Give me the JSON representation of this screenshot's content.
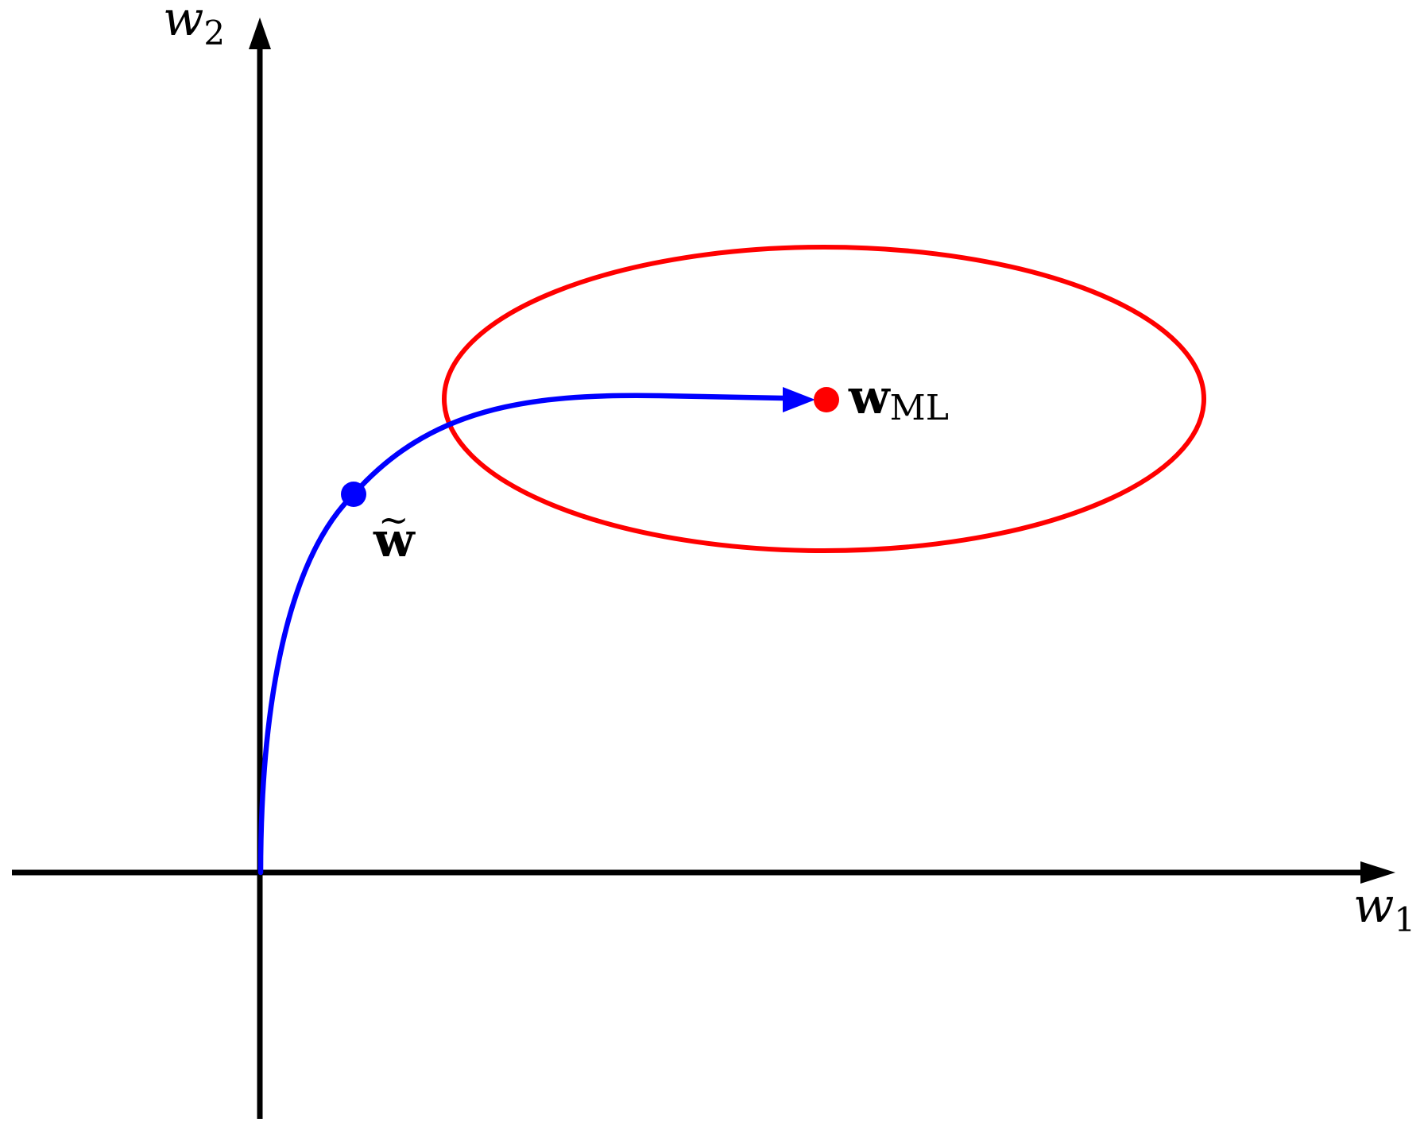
{
  "axes": {
    "x_label_base": "w",
    "x_label_sub": "1",
    "y_label_base": "w",
    "y_label_sub": "2"
  },
  "points": {
    "ml_label_base": "w",
    "ml_label_sub": "ML",
    "tilde_label_base": "w",
    "tilde_label_accent": "~"
  },
  "colors": {
    "axis": "#000000",
    "ellipse": "#ff0000",
    "ml_point": "#ff0000",
    "path": "#0000ff",
    "tilde_point": "#0000ff"
  }
}
